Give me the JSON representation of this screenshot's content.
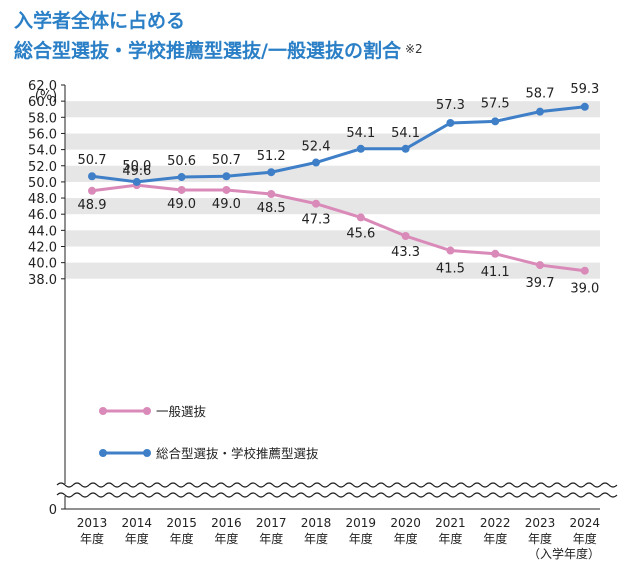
{
  "title_line1": "入学者全体に占める",
  "title_line2": "総合型選抜・学校推薦型選抜/一般選抜の割合",
  "title_note": "※2",
  "chart_data": {
    "type": "line",
    "ylabel": "(%)",
    "xlabel": "（入学年度）",
    "ylim": [
      38.0,
      62.0
    ],
    "y_ticks": [
      "62.0",
      "60.0",
      "58.0",
      "56.0",
      "54.0",
      "52.0",
      "50.0",
      "48.0",
      "46.0",
      "44.0",
      "42.0",
      "40.0",
      "38.0",
      "0"
    ],
    "x": [
      "2013",
      "2014",
      "2015",
      "2016",
      "2017",
      "2018",
      "2019",
      "2020",
      "2021",
      "2022",
      "2023",
      "2024"
    ],
    "x_suffix": "年度",
    "grid": true,
    "axis_break": true,
    "legend_position": "bottom-left",
    "series": [
      {
        "name": "一般選抜",
        "color": "#d98ab8",
        "values": [
          48.9,
          49.6,
          49.0,
          49.0,
          48.5,
          47.3,
          45.6,
          43.3,
          41.5,
          41.1,
          39.7,
          39.0
        ],
        "labels": [
          "48.9",
          "49.6",
          "49.0",
          "49.0",
          "48.5",
          "47.3",
          "45.6",
          "43.3",
          "41.5",
          "41.1",
          "39.7",
          "39.0"
        ]
      },
      {
        "name": "総合型選抜・学校推薦型選抜",
        "color": "#3f7fc8",
        "values": [
          50.7,
          50.0,
          50.6,
          50.7,
          51.2,
          52.4,
          54.1,
          54.1,
          57.3,
          57.5,
          58.7,
          59.3
        ],
        "labels": [
          "50.7",
          "50.0",
          "50.6",
          "50.7",
          "51.2",
          "52.4",
          "54.1",
          "54.1",
          "57.3",
          "57.5",
          "58.7",
          "59.3"
        ]
      }
    ],
    "colors": {
      "title": "#2a7fc6",
      "band": "#e6e6e6"
    }
  }
}
